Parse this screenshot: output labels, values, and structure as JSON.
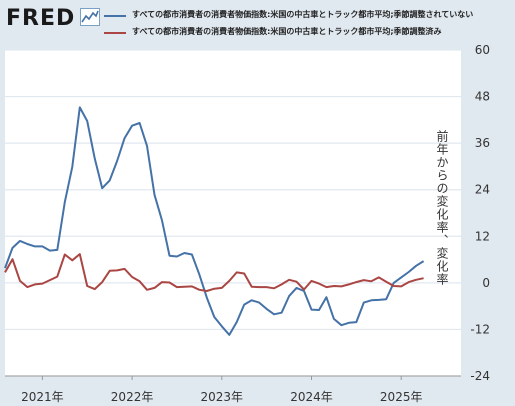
{
  "header": {
    "logo_text": "FRED",
    "logo_icon": "line-chart-icon"
  },
  "colors": {
    "background": "#e1e9f0",
    "plot_bg": "#ffffff",
    "grid": "#e1e9f0",
    "series_unadjusted": "#4572a7",
    "series_adjusted": "#aa4643"
  },
  "chart_data": {
    "type": "line",
    "title": "",
    "xlabel": "",
    "ylabel": "前年からの変化率、変化率",
    "ylim": [
      -24,
      60
    ],
    "yticks": [
      -24,
      -12,
      0,
      12,
      24,
      36,
      48,
      60
    ],
    "xtick_labels": [
      "2021年",
      "2022年",
      "2023年",
      "2024年",
      "2025年"
    ],
    "x_start": "2020-08",
    "legend": "top",
    "grid": true,
    "series": [
      {
        "name": "すべての都市消費者の消費者物価指数:米国の中古車とトラック都市平均;季節調整されていない",
        "color": "#4572a7",
        "start": "2020-08",
        "values": [
          3.8,
          9.0,
          10.8,
          10.0,
          9.4,
          9.4,
          8.3,
          8.5,
          20.8,
          29.9,
          45.2,
          41.7,
          32.1,
          24.4,
          26.4,
          31.4,
          37.3,
          40.5,
          41.2,
          35.3,
          22.7,
          16.1,
          7.0,
          6.8,
          7.7,
          7.3,
          2.1,
          -3.8,
          -8.8,
          -11.2,
          -13.4,
          -10.1,
          -5.6,
          -4.5,
          -5.1,
          -6.7,
          -8.1,
          -7.7,
          -3.4,
          -1.3,
          -2.1,
          -6.9,
          -7.0,
          -3.7,
          -9.3,
          -10.9,
          -10.3,
          -10.1,
          -5.1,
          -4.5,
          -4.4,
          -4.2,
          0.0,
          1.4,
          2.8,
          4.4,
          5.6
        ]
      },
      {
        "name": "すべての都市消費者の消費者物価指数:米国の中古車とトラック都市平均;季節調整済み",
        "color": "#aa4643",
        "start": "2020-08",
        "values": [
          2.7,
          6.1,
          0.5,
          -1.1,
          -0.4,
          -0.2,
          0.7,
          1.6,
          7.3,
          5.8,
          7.4,
          -0.8,
          -1.6,
          0.2,
          3.1,
          3.2,
          3.6,
          1.5,
          0.4,
          -1.8,
          -1.3,
          0.2,
          0.1,
          -1.1,
          -1.0,
          -0.9,
          -1.8,
          -2.1,
          -1.5,
          -1.3,
          0.5,
          2.7,
          2.4,
          -1.0,
          -1.1,
          -1.1,
          -1.4,
          -0.4,
          0.8,
          0.3,
          -1.7,
          0.5,
          -0.2,
          -1.1,
          -0.8,
          -0.9,
          -0.4,
          0.2,
          0.7,
          0.4,
          1.4,
          0.3,
          -0.8,
          -0.9,
          0.2,
          0.8,
          1.2
        ]
      }
    ]
  }
}
